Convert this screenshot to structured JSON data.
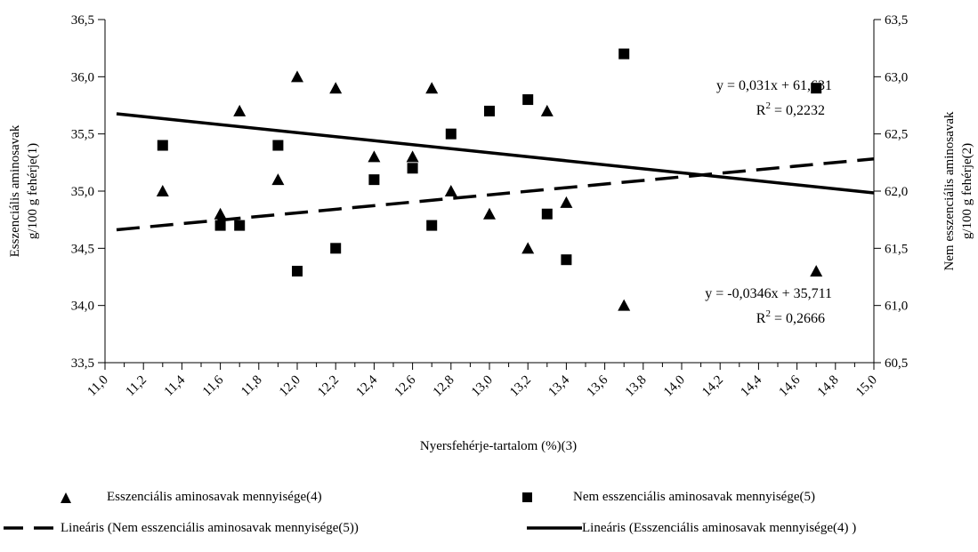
{
  "chart_data": {
    "type": "scatter",
    "xlabel": "Nyersfehérje-tartalom (%)(3)",
    "ylabel_left": [
      "Esszenciális aminosavak",
      "g/100 g fehérje(1)"
    ],
    "ylabel_right": [
      "Nem esszenciális aminosavak",
      "g/100 g fehérje(2)"
    ],
    "xlim": [
      11.0,
      15.0
    ],
    "ylim_left": [
      33.5,
      36.5
    ],
    "ylim_right": [
      60.5,
      63.5
    ],
    "x_ticks": [
      "11,0",
      "11,2",
      "11,4",
      "11,6",
      "11,8",
      "12,0",
      "12,2",
      "12,4",
      "12,6",
      "12,8",
      "13,0",
      "13,2",
      "13,4",
      "13,6",
      "13,8",
      "14,0",
      "14,2",
      "14,4",
      "14,6",
      "14,8",
      "15,0"
    ],
    "y_ticks_left": [
      "33,5",
      "34,0",
      "34,5",
      "35,0",
      "35,5",
      "36,0",
      "36,5"
    ],
    "y_ticks_right": [
      "60,5",
      "61,0",
      "61,5",
      "62,0",
      "62,5",
      "63,0",
      "63,5"
    ],
    "series": [
      {
        "name": "Esszenciális aminosavak mennyisége(4)",
        "marker": "triangle",
        "axis": "left",
        "points": [
          [
            11.3,
            35.0
          ],
          [
            11.6,
            34.8
          ],
          [
            11.7,
            35.7
          ],
          [
            11.9,
            35.1
          ],
          [
            12.0,
            36.0
          ],
          [
            12.2,
            35.9
          ],
          [
            12.4,
            35.3
          ],
          [
            12.6,
            35.3
          ],
          [
            12.7,
            35.9
          ],
          [
            12.8,
            35.0
          ],
          [
            13.0,
            34.8
          ],
          [
            13.2,
            34.5
          ],
          [
            13.3,
            35.7
          ],
          [
            13.4,
            34.9
          ],
          [
            13.7,
            34.0
          ],
          [
            14.7,
            34.3
          ]
        ]
      },
      {
        "name": "Nem esszenciális aminosavak mennyisége(5)",
        "marker": "square",
        "axis": "right",
        "points": [
          [
            11.3,
            62.4
          ],
          [
            11.6,
            61.7
          ],
          [
            11.7,
            61.7
          ],
          [
            11.9,
            62.4
          ],
          [
            12.0,
            61.3
          ],
          [
            12.2,
            61.5
          ],
          [
            12.4,
            62.1
          ],
          [
            12.6,
            62.2
          ],
          [
            12.7,
            61.7
          ],
          [
            12.8,
            62.5
          ],
          [
            13.0,
            62.7
          ],
          [
            13.2,
            62.8
          ],
          [
            13.3,
            61.8
          ],
          [
            13.4,
            61.4
          ],
          [
            13.7,
            63.2
          ],
          [
            14.7,
            62.9
          ]
        ]
      }
    ],
    "trendlines": [
      {
        "name": "Lineáris (Nem esszenciális aminosavak mennyisége(5))",
        "axis": "right",
        "style": "dashed",
        "slope": 0.031,
        "intercept": 61.631,
        "x_start": 1,
        "x_end": 21,
        "equation": "y = 0,031x + 61,631",
        "r2_prefix": "R",
        "r2_sup": "2",
        "r2_value": " = 0,2232"
      },
      {
        "name": "Lineáris (Esszenciális aminosavak mennyisége(4) )",
        "axis": "left",
        "style": "solid",
        "slope": -0.0346,
        "intercept": 35.711,
        "x_start": 1,
        "x_end": 21,
        "equation": "y = -0,0346x + 35,711",
        "r2_prefix": "R",
        "r2_sup": "2",
        "r2_value": " = 0,2666"
      }
    ],
    "grid": false,
    "legend_position": "bottom"
  }
}
